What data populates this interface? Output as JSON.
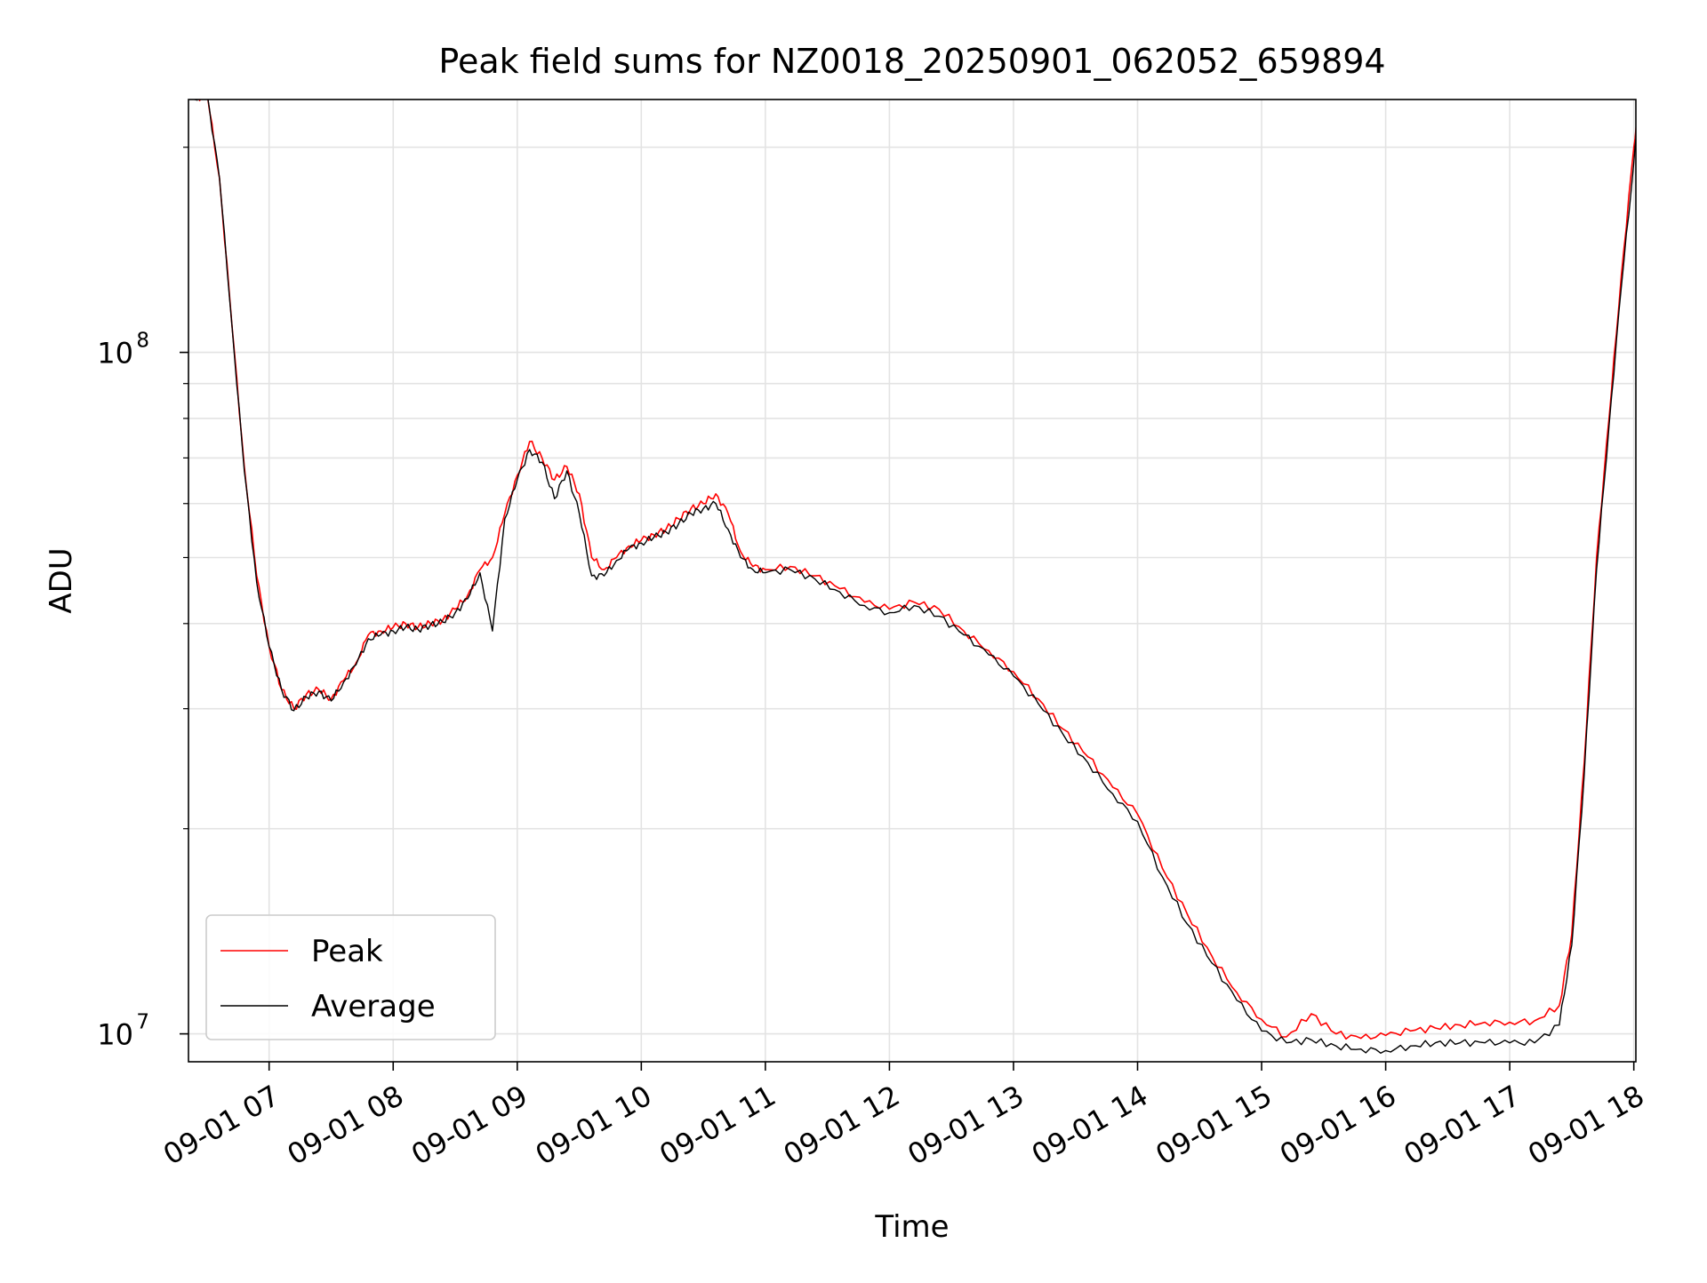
{
  "chart_data": {
    "type": "line",
    "title": "Peak field sums for NZ0018_20250901_062052_659894",
    "xlabel": "Time",
    "ylabel": "ADU",
    "x_scale": "time",
    "y_scale": "log",
    "xlim": [
      "2025-09-01 06:21",
      "2025-09-01 18:01"
    ],
    "ylim": [
      9100000,
      235000000
    ],
    "x_ticks": [
      "09-01 07",
      "09-01 08",
      "09-01 09",
      "09-01 10",
      "09-01 11",
      "09-01 12",
      "09-01 13",
      "09-01 14",
      "09-01 15",
      "09-01 16",
      "09-01 17",
      "09-01 18"
    ],
    "y_ticks": [
      {
        "value": 10000000,
        "base": "10",
        "exp": "7"
      },
      {
        "value": 100000000,
        "base": "10",
        "exp": "8"
      }
    ],
    "grid": true,
    "legend_position": "lower left",
    "x_hours_base": "2025-09-01 00:00",
    "series": [
      {
        "name": "Peak",
        "color": "#ff0000",
        "x_hours": [
          6.4,
          6.5,
          6.6,
          6.7,
          6.8,
          6.9,
          7.0,
          7.1,
          7.2,
          7.3,
          7.4,
          7.5,
          7.6,
          7.7,
          7.8,
          7.9,
          8.0,
          8.1,
          8.2,
          8.3,
          8.4,
          8.5,
          8.6,
          8.7,
          8.8,
          8.9,
          9.0,
          9.1,
          9.2,
          9.3,
          9.4,
          9.5,
          9.6,
          9.7,
          9.8,
          9.9,
          10.0,
          10.1,
          10.2,
          10.3,
          10.4,
          10.5,
          10.6,
          10.7,
          10.8,
          10.9,
          11.0,
          11.2,
          11.4,
          11.6,
          11.8,
          12.0,
          12.2,
          12.4,
          12.6,
          12.8,
          13.0,
          13.2,
          13.4,
          13.6,
          13.8,
          14.0,
          14.2,
          14.4,
          14.6,
          14.8,
          15.0,
          15.2,
          15.4,
          15.6,
          15.8,
          16.0,
          16.2,
          16.4,
          16.6,
          16.8,
          17.0,
          17.2,
          17.4,
          17.5,
          17.6,
          17.7,
          17.8,
          17.9,
          18.0,
          18.05
        ],
        "values": [
          235000000,
          240000000,
          180000000,
          110000000,
          68000000,
          47000000,
          37000000,
          32000000,
          30000000,
          31500000,
          32000000,
          31000000,
          33000000,
          35000000,
          38500000,
          39000000,
          39500000,
          40000000,
          39500000,
          40000000,
          40500000,
          42000000,
          44000000,
          48000000,
          50000000,
          58000000,
          66000000,
          74000000,
          70000000,
          65000000,
          68000000,
          62000000,
          50000000,
          48000000,
          50000000,
          52000000,
          53000000,
          54000000,
          55000000,
          57000000,
          59000000,
          60000000,
          62000000,
          58000000,
          51000000,
          48500000,
          48000000,
          48500000,
          47000000,
          45000000,
          43000000,
          42000000,
          43000000,
          42000000,
          39000000,
          36500000,
          34000000,
          31000000,
          28000000,
          25500000,
          23000000,
          21000000,
          17500000,
          15000000,
          13000000,
          11500000,
          10500000,
          9900000,
          10700000,
          10000000,
          9850000,
          9950000,
          10100000,
          10200000,
          10300000,
          10400000,
          10400000,
          10450000,
          11000000,
          14000000,
          25000000,
          50000000,
          80000000,
          130000000,
          200000000,
          240000000
        ]
      },
      {
        "name": "Average",
        "color": "#000000",
        "x_hours": [
          6.4,
          6.5,
          6.6,
          6.7,
          6.8,
          6.9,
          7.0,
          7.1,
          7.2,
          7.3,
          7.4,
          7.5,
          7.6,
          7.7,
          7.8,
          7.9,
          8.0,
          8.1,
          8.2,
          8.3,
          8.4,
          8.5,
          8.6,
          8.7,
          8.8,
          8.9,
          9.0,
          9.1,
          9.2,
          9.3,
          9.4,
          9.5,
          9.6,
          9.7,
          9.8,
          9.9,
          10.0,
          10.1,
          10.2,
          10.3,
          10.4,
          10.5,
          10.6,
          10.7,
          10.8,
          10.9,
          11.0,
          11.2,
          11.4,
          11.6,
          11.8,
          12.0,
          12.2,
          12.4,
          12.6,
          12.8,
          13.0,
          13.2,
          13.4,
          13.6,
          13.8,
          14.0,
          14.2,
          14.4,
          14.6,
          14.8,
          15.0,
          15.2,
          15.4,
          15.6,
          15.8,
          16.0,
          16.2,
          16.4,
          16.6,
          16.8,
          17.0,
          17.2,
          17.4,
          17.5,
          17.6,
          17.7,
          17.8,
          17.9,
          18.0,
          18.05
        ],
        "values": [
          235000000,
          240000000,
          180000000,
          110000000,
          67000000,
          46000000,
          37000000,
          32000000,
          29800000,
          31200000,
          31800000,
          30800000,
          32800000,
          34800000,
          38000000,
          38500000,
          39000000,
          39500000,
          39200000,
          39800000,
          40200000,
          41500000,
          43500000,
          47500000,
          39000000,
          57000000,
          65000000,
          72000000,
          69000000,
          61000000,
          67000000,
          58000000,
          47000000,
          47000000,
          49500000,
          51500000,
          52500000,
          53500000,
          54500000,
          56000000,
          58000000,
          59000000,
          60000000,
          55000000,
          50000000,
          48000000,
          47500000,
          48000000,
          46500000,
          44500000,
          42500000,
          41500000,
          42500000,
          41000000,
          38500000,
          36000000,
          33500000,
          30500000,
          27500000,
          25000000,
          22500000,
          20500000,
          17000000,
          14500000,
          12700000,
          11200000,
          10100000,
          9700000,
          9800000,
          9600000,
          9500000,
          9450000,
          9600000,
          9700000,
          9700000,
          9700000,
          9700000,
          9700000,
          10300000,
          13500000,
          24000000,
          48000000,
          78000000,
          125000000,
          190000000,
          240000000
        ]
      }
    ]
  }
}
